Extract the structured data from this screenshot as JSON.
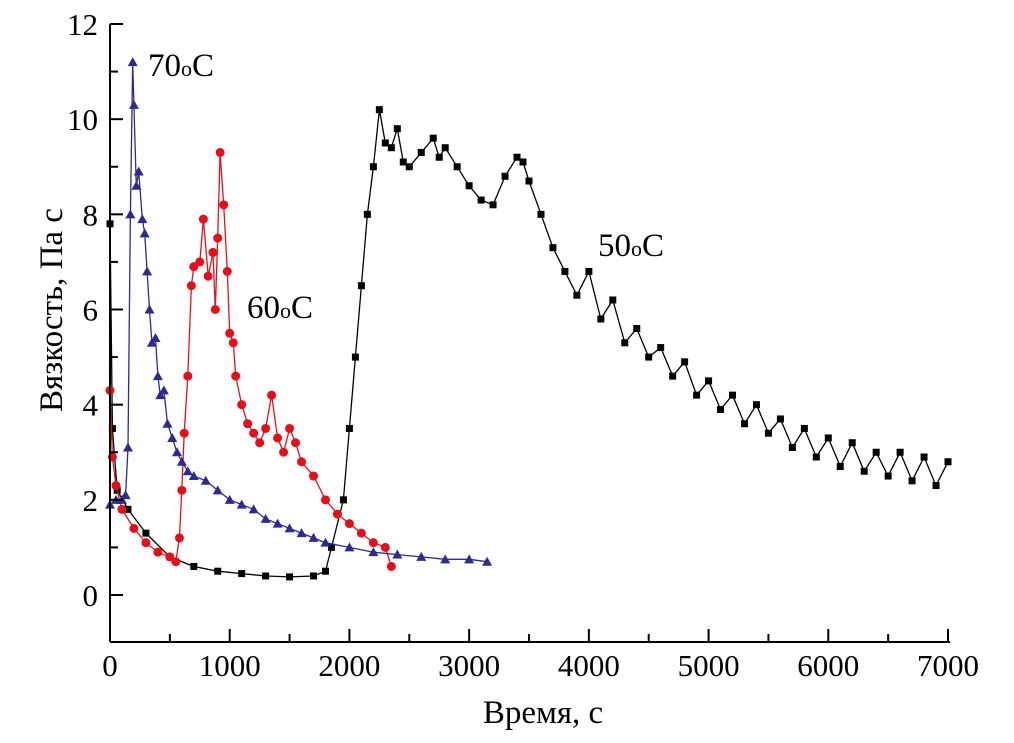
{
  "chart_data": {
    "type": "line",
    "title": "",
    "xlabel": "Время, с",
    "ylabel": "Вязкость, Па с",
    "xlim": [
      0,
      7000
    ],
    "ylim": [
      -1,
      12
    ],
    "xticks": [
      0,
      1000,
      2000,
      3000,
      4000,
      5000,
      6000,
      7000
    ],
    "yticks": [
      0,
      2,
      4,
      6,
      8,
      10,
      12
    ],
    "grid": false,
    "legend": "none (inline labels)",
    "series": [
      {
        "name": "50oC",
        "label_main": "50",
        "label_sup": "o",
        "label_unit": "C",
        "color": "#000000",
        "marker": "square",
        "x": [
          0,
          20,
          60,
          150,
          300,
          500,
          700,
          900,
          1100,
          1300,
          1500,
          1700,
          1800,
          1850,
          1950,
          2000,
          2050,
          2100,
          2150,
          2200,
          2250,
          2300,
          2350,
          2400,
          2450,
          2500,
          2600,
          2700,
          2750,
          2800,
          2900,
          3000,
          3100,
          3200,
          3300,
          3400,
          3450,
          3500,
          3600,
          3700,
          3800,
          3900,
          4000,
          4100,
          4200,
          4300,
          4400,
          4500,
          4600,
          4700,
          4800,
          4900,
          5000,
          5100,
          5200,
          5300,
          5400,
          5500,
          5600,
          5700,
          5800,
          5900,
          6000,
          6100,
          6200,
          6300,
          6400,
          6500,
          6600,
          6700,
          6800,
          6900,
          7000
        ],
        "y": [
          7.8,
          3.5,
          2.2,
          1.8,
          1.3,
          0.8,
          0.6,
          0.5,
          0.45,
          0.4,
          0.38,
          0.4,
          0.5,
          1.0,
          2.0,
          3.5,
          5.0,
          6.5,
          8.0,
          9.0,
          10.2,
          9.5,
          9.4,
          9.8,
          9.1,
          9.0,
          9.3,
          9.6,
          9.2,
          9.4,
          9.0,
          8.6,
          8.3,
          8.2,
          8.8,
          9.2,
          9.1,
          8.7,
          8.0,
          7.3,
          6.8,
          6.3,
          6.8,
          5.8,
          6.2,
          5.3,
          5.6,
          5.0,
          5.2,
          4.6,
          4.9,
          4.2,
          4.5,
          3.9,
          4.2,
          3.6,
          4.0,
          3.4,
          3.7,
          3.1,
          3.5,
          2.9,
          3.3,
          2.7,
          3.2,
          2.6,
          3.0,
          2.5,
          3.0,
          2.4,
          2.9,
          2.3,
          2.8
        ]
      },
      {
        "name": "60oC",
        "label_main": "60",
        "label_sup": "o",
        "label_unit": "C",
        "color": "#e3101c",
        "marker": "circle",
        "x": [
          0,
          20,
          50,
          100,
          200,
          300,
          400,
          500,
          550,
          580,
          600,
          620,
          650,
          680,
          700,
          750,
          780,
          820,
          860,
          880,
          900,
          920,
          950,
          980,
          1000,
          1030,
          1050,
          1100,
          1150,
          1200,
          1250,
          1300,
          1350,
          1400,
          1450,
          1500,
          1550,
          1600,
          1700,
          1800,
          1900,
          2000,
          2100,
          2200,
          2300,
          2350
        ],
        "y": [
          4.3,
          2.9,
          2.3,
          1.8,
          1.4,
          1.1,
          0.9,
          0.8,
          0.7,
          1.2,
          2.2,
          3.4,
          4.6,
          6.5,
          6.9,
          7.0,
          7.9,
          6.7,
          7.2,
          6.0,
          7.5,
          9.3,
          8.2,
          6.8,
          5.5,
          5.3,
          4.6,
          4.0,
          3.6,
          3.4,
          3.2,
          3.5,
          4.2,
          3.3,
          3.0,
          3.5,
          3.2,
          2.8,
          2.5,
          2.0,
          1.7,
          1.5,
          1.3,
          1.1,
          1.0,
          0.6
        ]
      },
      {
        "name": "70oC",
        "label_main": "70",
        "label_sup": "o",
        "label_unit": "C",
        "color": "#2e2b8f",
        "marker": "triangle",
        "x": [
          0,
          50,
          100,
          130,
          150,
          170,
          190,
          200,
          220,
          240,
          270,
          290,
          310,
          330,
          350,
          380,
          400,
          420,
          450,
          480,
          520,
          560,
          600,
          650,
          700,
          800,
          900,
          1000,
          1100,
          1200,
          1300,
          1400,
          1500,
          1600,
          1700,
          1800,
          2000,
          2200,
          2400,
          2600,
          2800,
          3000,
          3150
        ],
        "y": [
          1.9,
          2.0,
          2.0,
          2.1,
          3.1,
          8.0,
          11.2,
          10.3,
          8.6,
          8.9,
          7.9,
          7.6,
          6.8,
          6.0,
          5.3,
          5.4,
          4.6,
          4.2,
          4.3,
          3.6,
          3.3,
          3.0,
          2.8,
          2.6,
          2.5,
          2.4,
          2.2,
          2.0,
          1.9,
          1.8,
          1.6,
          1.5,
          1.4,
          1.3,
          1.2,
          1.1,
          1.0,
          0.9,
          0.85,
          0.8,
          0.75,
          0.75,
          0.7
        ]
      }
    ]
  }
}
